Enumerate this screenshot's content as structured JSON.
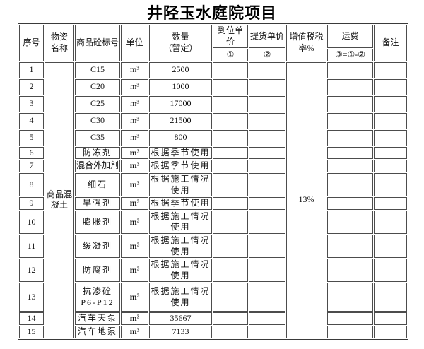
{
  "title": "井陉玉水庭院项目",
  "table": {
    "headers": {
      "seq": "序号",
      "material": "物资\n名称",
      "grade": "商品砼标号",
      "unit": "单位",
      "qty": "数量\n（暂定）",
      "arrival_price": "到位单价",
      "arrival_sub": "①",
      "pickup_price": "提货单价",
      "pickup_sub": "②",
      "vat": "增值税税\n率%",
      "freight": "运费",
      "freight_formula": "③=①-②",
      "remark": "备注"
    },
    "material_group": "商品混\n凝土",
    "vat_rate": "13%",
    "rows": [
      {
        "seq": "1",
        "grade": "C15",
        "unit": "m³",
        "qty": "2500"
      },
      {
        "seq": "2",
        "grade": "C20",
        "unit": "m³",
        "qty": "1000"
      },
      {
        "seq": "3",
        "grade": "C25",
        "unit": "m³",
        "qty": "17000"
      },
      {
        "seq": "4",
        "grade": "C30",
        "unit": "m³",
        "qty": "21500"
      },
      {
        "seq": "5",
        "grade": "C35",
        "unit": "m³",
        "qty": "800"
      },
      {
        "seq": "6",
        "grade": "防冻剂",
        "unit": "m³",
        "qty": "根据季节使用"
      },
      {
        "seq": "7",
        "grade": "混合外加剂",
        "unit": "m³",
        "qty": "根据季节使用"
      },
      {
        "seq": "8",
        "grade": "细石",
        "unit": "m³",
        "qty": "根据施工情况\n使用"
      },
      {
        "seq": "9",
        "grade": "早强剂",
        "unit": "m³",
        "qty": "根据季节使用"
      },
      {
        "seq": "10",
        "grade": "膨胀剂",
        "unit": "m³",
        "qty": "根据施工情况\n使用"
      },
      {
        "seq": "11",
        "grade": "缓凝剂",
        "unit": "m³",
        "qty": "根据施工情况\n使用"
      },
      {
        "seq": "12",
        "grade": "防腐剂",
        "unit": "m³",
        "qty": "根据施工情况\n使用"
      },
      {
        "seq": "13",
        "grade": "抗渗砼\nP6-P12",
        "unit": "m³",
        "qty": "根据施工情况\n使用"
      },
      {
        "seq": "14",
        "grade": "汽车天泵",
        "unit": "m³",
        "qty": "35667"
      },
      {
        "seq": "15",
        "grade": "汽车地泵",
        "unit": "m³",
        "qty": "7133"
      }
    ]
  }
}
